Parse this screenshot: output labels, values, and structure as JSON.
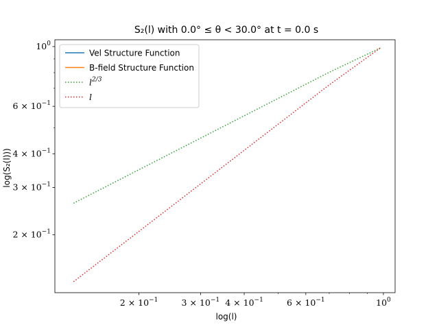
{
  "chart_data": {
    "type": "line",
    "title": "S₂(l) with 0.0° ≤ θ < 30.0° at t = 0.0 s",
    "xlabel": "log(l)",
    "ylabel": "log(S₂(l)))",
    "xscale": "log",
    "yscale": "log",
    "xlim": [
      0.115,
      1.08
    ],
    "ylim": [
      0.122,
      1.06
    ],
    "grid": false,
    "legend_position": "top-left",
    "x_ticks": [
      {
        "value": 0.2,
        "mantissa": "2 × 10",
        "exp": "−1"
      },
      {
        "value": 0.3,
        "mantissa": "3 × 10",
        "exp": "−1"
      },
      {
        "value": 0.4,
        "mantissa": "4 × 10",
        "exp": "−1"
      },
      {
        "value": 0.6,
        "mantissa": "6 × 10",
        "exp": "−1"
      },
      {
        "value": 1.0,
        "mantissa": "10",
        "exp": "0"
      }
    ],
    "x_minor_ticks": [
      0.5,
      0.7,
      0.8,
      0.9
    ],
    "y_ticks": [
      {
        "value": 0.2,
        "mantissa": "2 × 10",
        "exp": "−1"
      },
      {
        "value": 0.3,
        "mantissa": "3 × 10",
        "exp": "−1"
      },
      {
        "value": 0.4,
        "mantissa": "4 × 10",
        "exp": "−1"
      },
      {
        "value": 0.6,
        "mantissa": "6 × 10",
        "exp": "−1"
      },
      {
        "value": 1.0,
        "mantissa": "10",
        "exp": "0"
      }
    ],
    "y_minor_ticks": [
      0.5,
      0.7,
      0.8,
      0.9
    ],
    "series": [
      {
        "name": "Vel Structure Function",
        "color": "#1f77b4",
        "style": "solid",
        "x": [],
        "y": []
      },
      {
        "name": "B-field Structure Function",
        "color": "#ff7f0e",
        "style": "solid",
        "x": [],
        "y": []
      },
      {
        "name": "l^{2/3}",
        "label_main": "l",
        "label_sup": "2/3",
        "color": "#2ca02c",
        "style": "dotted",
        "x": [
          0.13,
          0.2,
          0.3,
          0.5,
          0.7,
          0.98
        ],
        "y": [
          0.262,
          0.349,
          0.457,
          0.642,
          0.803,
          0.988
        ]
      },
      {
        "name": "l",
        "label_main": "l",
        "label_sup": "",
        "color": "#d62728",
        "style": "dotted",
        "x": [
          0.13,
          0.2,
          0.3,
          0.5,
          0.7,
          0.98
        ],
        "y": [
          0.134,
          0.206,
          0.309,
          0.515,
          0.721,
          0.988
        ]
      }
    ]
  }
}
